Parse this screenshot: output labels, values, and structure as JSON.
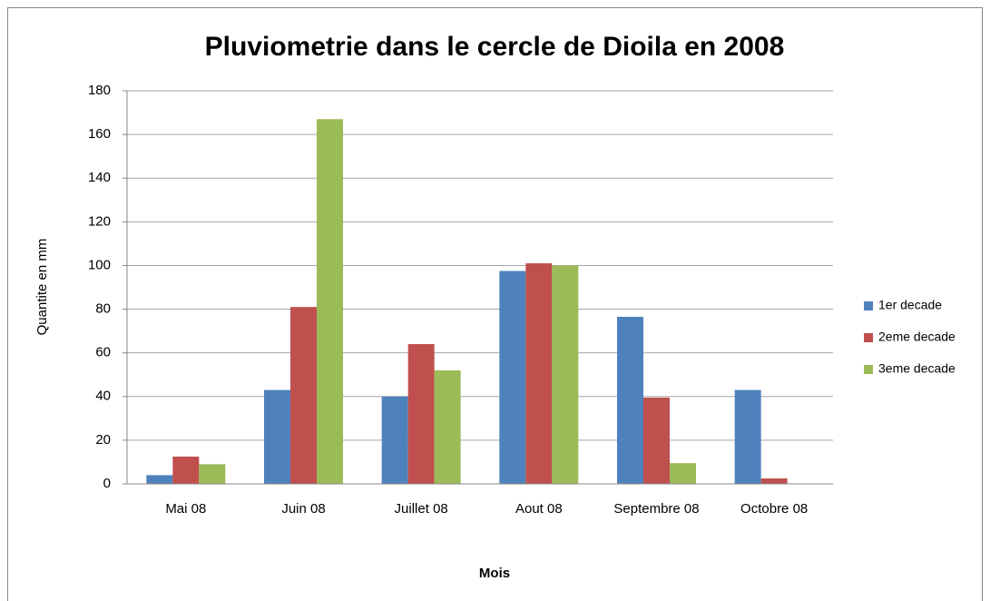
{
  "chart_data": {
    "type": "bar",
    "title": "Pluviometrie dans le cercle de Dioila en 2008",
    "x_label": "Mois",
    "y_label": "Quantite en mm",
    "categories": [
      "Mai 08",
      "Juin 08",
      "Juillet 08",
      "Aout 08",
      "Septembre 08",
      "Octobre 08"
    ],
    "series": [
      {
        "name": "1er decade",
        "color": "#4f81bd",
        "values": [
          4,
          43,
          40,
          97.5,
          76.5,
          43
        ]
      },
      {
        "name": "2eme decade",
        "color": "#c0504d",
        "values": [
          12.5,
          81,
          64,
          101,
          39.5,
          2.5
        ]
      },
      {
        "name": "3eme decade",
        "color": "#9bbb59",
        "values": [
          9,
          167,
          52,
          100,
          9.5,
          0
        ]
      }
    ],
    "ylim": [
      0,
      180
    ],
    "yticks": [
      0,
      20,
      40,
      60,
      80,
      100,
      120,
      140,
      160,
      180
    ],
    "grid": true,
    "legend": "right"
  }
}
